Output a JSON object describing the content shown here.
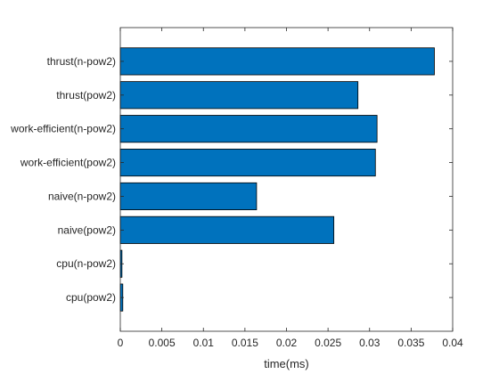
{
  "chart_data": {
    "type": "bar",
    "orientation": "horizontal",
    "title": "",
    "xlabel": "time(ms)",
    "ylabel": "",
    "xlim": [
      0,
      0.04
    ],
    "xticks": [
      "0",
      "0.005",
      "0.01",
      "0.015",
      "0.02",
      "0.025",
      "0.03",
      "0.035",
      "0.04"
    ],
    "xtick_values": [
      0,
      0.005,
      0.01,
      0.015,
      0.02,
      0.025,
      0.03,
      0.035,
      0.04
    ],
    "categories": [
      "cpu(pow2)",
      "cpu(n-pow2)",
      "naive(pow2)",
      "naive(n-pow2)",
      "work-efficient(pow2)",
      "work-efficient(n-pow2)",
      "thrust(pow2)",
      "thrust(n-pow2)"
    ],
    "values": [
      0.0003,
      0.0002,
      0.0257,
      0.0164,
      0.0307,
      0.0309,
      0.0286,
      0.0378
    ],
    "grid": false,
    "bar_color": "#0072BD",
    "edge_color": "#000000"
  }
}
